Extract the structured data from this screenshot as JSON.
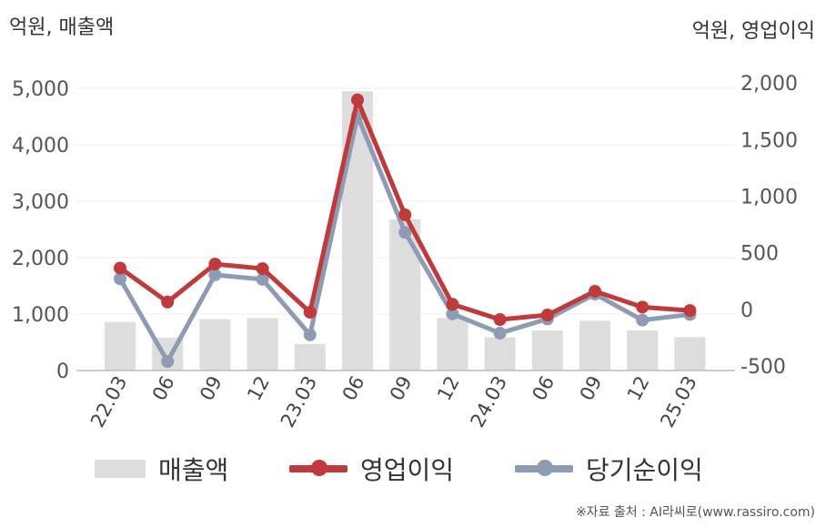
{
  "labels": {
    "left_unit": "억원, 매출액",
    "right_unit": "억원, 영업이익",
    "source": "※자료 출처 : AI라씨로(www.rassiro.com)"
  },
  "legend": {
    "revenue": "매출액",
    "operating": "영업이익",
    "net": "당기순이익"
  },
  "colors": {
    "bar": "#dddddd",
    "operating": "#c0393b",
    "net": "#8e9bb5",
    "axis": "#bbbbbb",
    "grid": "#eeeeee"
  },
  "chart_data": {
    "type": "bar+line",
    "categories": [
      "22.03",
      "06",
      "09",
      "12",
      "23.03",
      "06",
      "09",
      "12",
      "24.03",
      "06",
      "09",
      "12",
      "25.03"
    ],
    "left_axis": {
      "ticks": [
        0,
        1000,
        2000,
        3000,
        4000,
        5000
      ],
      "tick_labels": [
        "0",
        "1,000",
        "2,000",
        "3,000",
        "4,000",
        "5,000"
      ],
      "range": [
        0,
        5600
      ]
    },
    "right_axis": {
      "ticks": [
        -500,
        0,
        500,
        1000,
        1500,
        2000
      ],
      "tick_labels": [
        "-500",
        "0",
        "500",
        "1,000",
        "1,500",
        "2,000"
      ],
      "range": [
        -540,
        2250
      ]
    },
    "series": [
      {
        "name": "매출액",
        "kind": "bar",
        "axis": "left",
        "values": [
          860,
          580,
          910,
          930,
          470,
          4950,
          2680,
          930,
          590,
          710,
          880,
          710,
          590
        ]
      },
      {
        "name": "영업이익",
        "kind": "line",
        "axis": "right",
        "values": [
          365,
          65,
          400,
          360,
          -25,
          1850,
          835,
          45,
          -90,
          -50,
          160,
          20,
          -10
        ]
      },
      {
        "name": "당기순이익",
        "kind": "line",
        "axis": "right",
        "values": [
          270,
          -460,
          305,
          265,
          -225,
          1710,
          680,
          -40,
          -210,
          -85,
          135,
          -95,
          -45
        ]
      }
    ],
    "grid": "horizontal",
    "legend_position": "bottom"
  }
}
